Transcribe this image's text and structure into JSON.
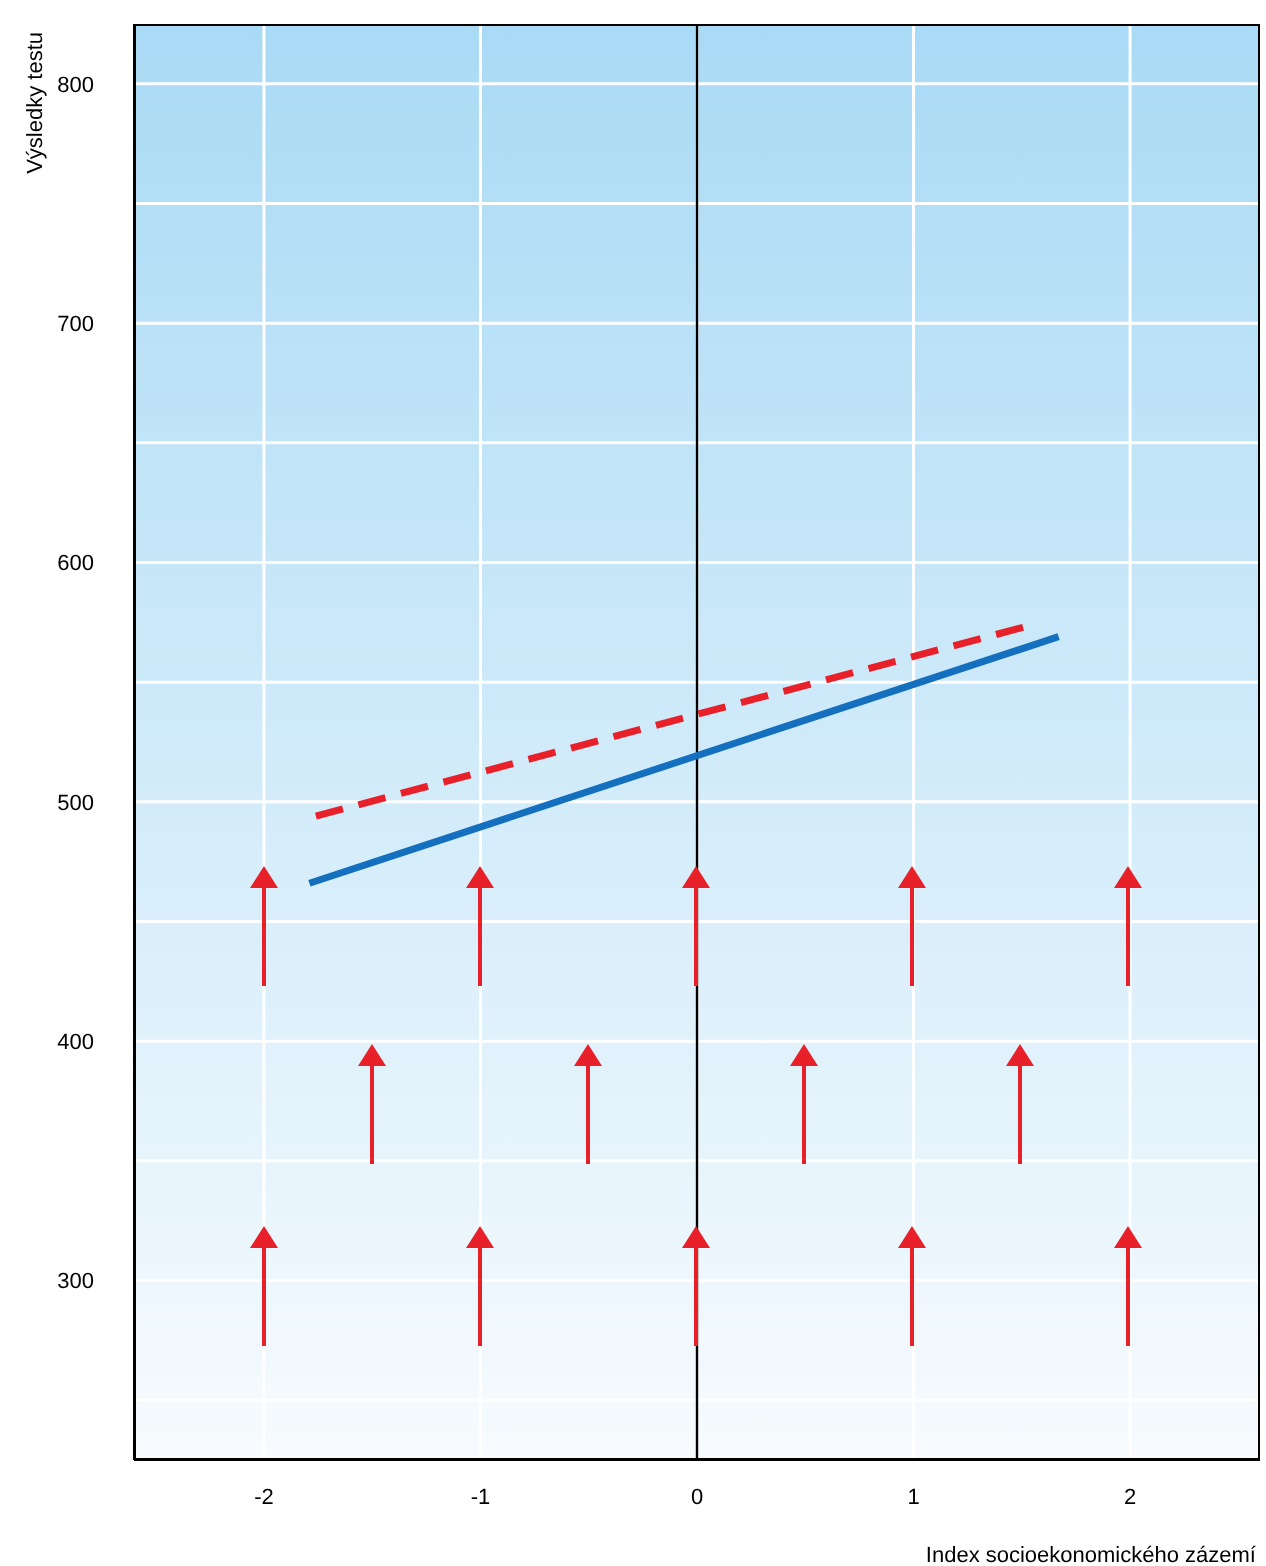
{
  "chart_data": {
    "type": "line",
    "xlabel": "Index socioekonomického zázemí",
    "ylabel": "Výsledky testu",
    "xlim": [
      -2.6,
      2.6
    ],
    "xticks": [
      -2,
      -1,
      0,
      1,
      2
    ],
    "ylim": [
      225,
      825
    ],
    "yticks": [
      {
        "value": 250,
        "label": null
      },
      300,
      {
        "value": 350,
        "label": null
      },
      400,
      {
        "value": 450,
        "label": null
      },
      500,
      {
        "value": 550,
        "label": null
      },
      600,
      {
        "value": 650,
        "label": null
      },
      700,
      {
        "value": 750,
        "label": null
      },
      800
    ],
    "grid": true,
    "ref_lines": [
      {
        "axis": "x",
        "value": 0,
        "color": "#000000"
      }
    ],
    "series": [
      {
        "color": "#1470bf",
        "x": [
          -1.79,
          1.67
        ],
        "values": [
          466,
          569
        ],
        "line_style": "solid"
      },
      {
        "color": "#e8202a",
        "x": [
          -1.76,
          1.55
        ],
        "values": [
          494,
          574
        ],
        "line_style": "dashed"
      }
    ]
  }
}
